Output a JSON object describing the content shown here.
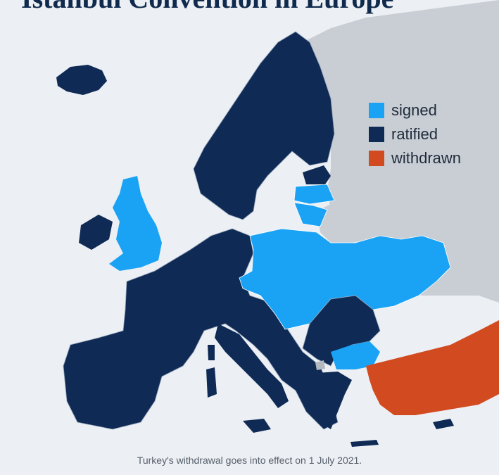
{
  "title": "Istanbul Convention in Europe",
  "colors": {
    "sea": "#eceff3",
    "non_europe": "#c9ced5",
    "signed": "#1aa3f5",
    "ratified": "#0f2a55",
    "withdrawn": "#d24a1f",
    "not_member": "#b4b9bf"
  },
  "legend": [
    {
      "status": "signed",
      "label": "signed"
    },
    {
      "status": "ratified",
      "label": "ratified"
    },
    {
      "status": "withdrawn",
      "label": "withdrawn"
    }
  ],
  "footnote": "Turkey's withdrawal goes into effect on 1 July 2021."
}
